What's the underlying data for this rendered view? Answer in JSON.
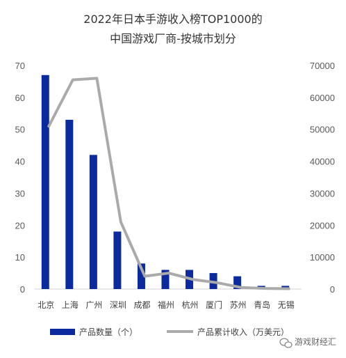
{
  "chart_data": {
    "type": "bar",
    "title_line1": "2022年日本手游收入榜TOP1000的",
    "title_line2": "中国游戏厂商-按城市划分",
    "categories": [
      "北京",
      "上海",
      "广州",
      "深圳",
      "成都",
      "福州",
      "杭州",
      "厦门",
      "苏州",
      "青岛",
      "无锡"
    ],
    "series": [
      {
        "name": "产品数量（个）",
        "type": "bar",
        "axis": "left",
        "values": [
          67,
          53,
          42,
          18,
          8,
          6,
          6,
          5,
          4,
          1,
          1
        ]
      },
      {
        "name": "产品累计收入（万美元）",
        "type": "line",
        "axis": "right",
        "values": [
          51000,
          65500,
          66000,
          21000,
          4000,
          5000,
          3000,
          2000,
          500,
          200,
          100
        ]
      }
    ],
    "y_left": {
      "min": 0,
      "max": 70,
      "ticks": [
        0,
        10,
        20,
        30,
        40,
        50,
        60,
        70
      ]
    },
    "y_right": {
      "min": 0,
      "max": 70000,
      "ticks": [
        0,
        10000,
        20000,
        30000,
        40000,
        50000,
        60000,
        70000
      ]
    },
    "grid": false,
    "legend_position": "bottom",
    "colors": {
      "bar": "#0b2a9e",
      "line": "#aaaaaa",
      "axis": "#d0d0d0"
    }
  },
  "watermark": {
    "text": "游戏财经汇",
    "icon": "wechat-icon"
  }
}
